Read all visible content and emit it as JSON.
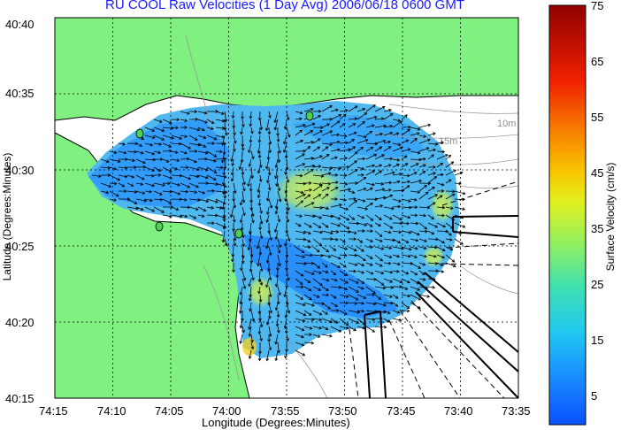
{
  "title": "RU COOL Raw Velocities (1 Day Avg) 2006/06/18 0600 GMT",
  "axes": {
    "xlabel": "Longitude (Degrees:Minutes)",
    "ylabel": "Latitude (Degrees:Minutes)",
    "xticks": [
      "74:15",
      "74:10",
      "74:05",
      "74:00",
      "73:55",
      "73:50",
      "73:45",
      "73:40",
      "73:35"
    ],
    "yticks": [
      "40:40",
      "40:35",
      "40:30",
      "40:25",
      "40:20",
      "40:15"
    ]
  },
  "colorbar": {
    "label": "Surface Velocity (cm/s)",
    "min": 0,
    "max": 75,
    "ticks": [
      "75",
      "65",
      "55",
      "45",
      "35",
      "25",
      "15",
      "5"
    ]
  },
  "contours": {
    "label_10m": "10m",
    "label_15m": "15m"
  },
  "colors": {
    "land": "#80f080",
    "title": "#1a1aff",
    "field_low": "#1f8fff",
    "field_mid": "#4fb8f0",
    "field_high": "#b8e86a"
  }
}
